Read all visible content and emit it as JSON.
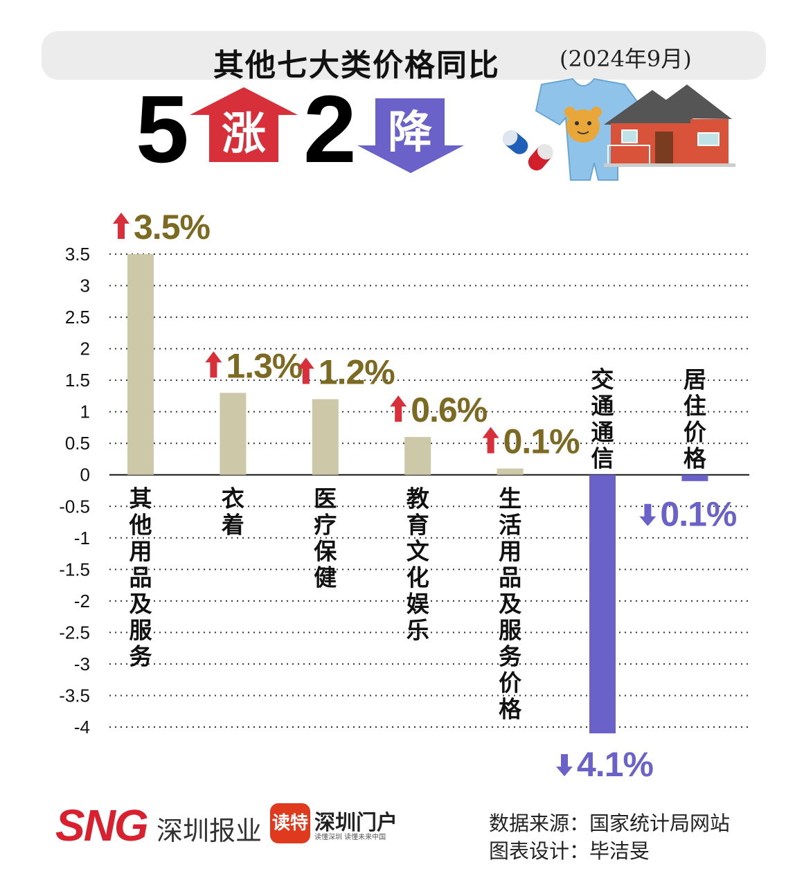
{
  "header": {
    "title": "其他七大类价格同比",
    "subtitle": "(2024年9月)"
  },
  "hero": {
    "up_count": "5",
    "up_label": "涨",
    "down_count": "2",
    "down_label": "降"
  },
  "chart_data": {
    "type": "bar",
    "categories": [
      "其他用品及服务",
      "衣着",
      "医疗保健",
      "教育文化娱乐",
      "生活用品及服务价格",
      "交通通信",
      "居住价格"
    ],
    "values": [
      3.5,
      1.3,
      1.2,
      0.6,
      0.1,
      -4.1,
      -0.1
    ],
    "data_labels": [
      "3.5%",
      "1.3%",
      "1.2%",
      "0.6%",
      "0.1%",
      "4.1%",
      "0.1%"
    ],
    "direction": [
      "up",
      "up",
      "up",
      "up",
      "up",
      "down",
      "down"
    ],
    "ylim": [
      -4,
      3.5
    ],
    "yticks": [
      "3.5",
      "3",
      "2.5",
      "2",
      "1.5",
      "1",
      "0.5",
      "0",
      "-0.5",
      "-1",
      "-1.5",
      "-2",
      "-2.5",
      "-3",
      "-3.5",
      "-4"
    ],
    "grid": true,
    "colors": {
      "positive_bar": "#cdc8a8",
      "negative_bar": "#6a62c9",
      "positive_label": "#7d6a22",
      "negative_label": "#6a62c9",
      "up_arrow": "#d8303a",
      "down_arrow": "#6a62c9"
    }
  },
  "footer": {
    "logo_sng": "SNG",
    "logo_sng_cn": "深圳报业",
    "logo_dute": "读特",
    "logo_portal": "深圳门户",
    "logo_portal_sub": "读懂深圳 读懂未来中国",
    "source": "数据来源：国家统计局网站",
    "designer": "图表设计：毕洁旻"
  },
  "icons": [
    "up-arrow-icon",
    "down-arrow-icon",
    "baby-clothes-icon",
    "pill-icon",
    "house-icon"
  ]
}
